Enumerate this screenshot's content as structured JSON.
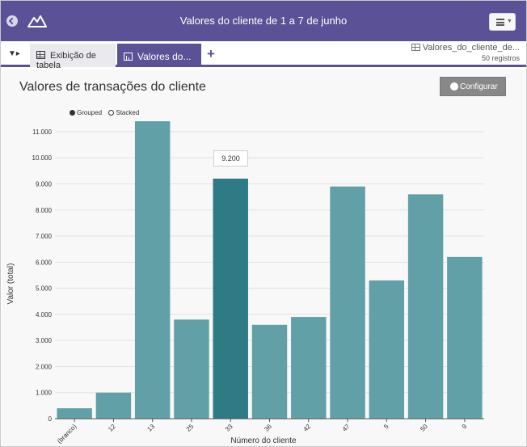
{
  "window": {
    "title": "Valores do cliente de 1 a 7 de junho",
    "colors": {
      "header": "#5b5197",
      "bar": "#62a0a8",
      "bar_highlight": "#2e7a85"
    }
  },
  "tabs": [
    {
      "label": "Exibição de tabela",
      "icon": "table-icon",
      "active": false
    },
    {
      "label": "Valores do...",
      "icon": "bar-chart-icon",
      "active": true
    }
  ],
  "dataset": {
    "name": "Valores_do_cliente_de...",
    "count": "50 registros"
  },
  "panel": {
    "title": "Valores de transações do cliente",
    "configure_label": "Configurar",
    "legend": [
      {
        "label": "Grouped",
        "selected": true
      },
      {
        "label": "Stacked",
        "selected": false
      }
    ],
    "tooltip": "9.200"
  },
  "chart_data": {
    "type": "bar",
    "categories": [
      "(branco)",
      "12",
      "13",
      "25",
      "33",
      "36",
      "42",
      "47",
      "5",
      "50",
      "9"
    ],
    "values": [
      400,
      1000,
      11400,
      3800,
      9200,
      3600,
      3900,
      8900,
      5300,
      8600,
      6200
    ],
    "highlighted_category": "33",
    "xlabel": "Número do cliente",
    "ylabel": "Valor (total)",
    "ylim": [
      0,
      11400
    ],
    "yticks": [
      0,
      1000,
      2000,
      3000,
      4000,
      5000,
      6000,
      7000,
      8000,
      9000,
      10000,
      11000
    ],
    "ytick_labels": [
      "0",
      "1.000",
      "2.000",
      "3.000",
      "4.000",
      "5.000",
      "6.000",
      "7.000",
      "8.000",
      "9.000",
      "10.000",
      "11.000"
    ],
    "grid": true
  }
}
